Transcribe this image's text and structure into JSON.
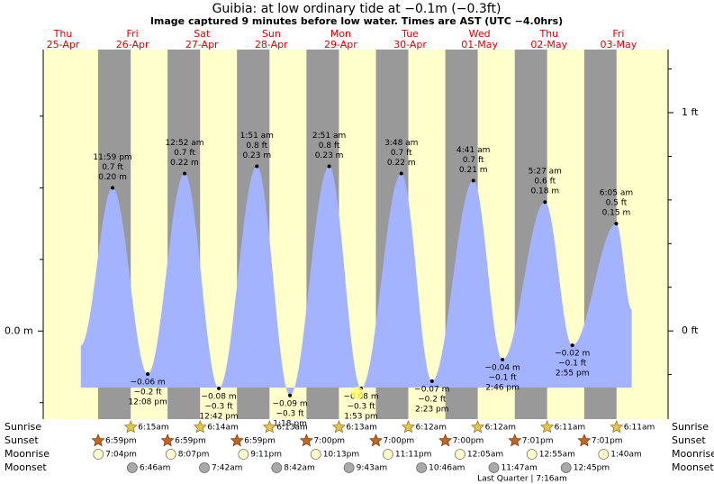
{
  "chart_data": {
    "type": "tide",
    "title": "Guibia: at low  ordinary tide at −0.1m (−0.3ft)",
    "subtitle": "Image captured 9 minutes before low water. Times are AST (UTC −4.0hrs)",
    "weekdays": [
      "Thu",
      "Fri",
      "Sat",
      "Sun",
      "Mon",
      "Tue",
      "Wed",
      "Thu",
      "Fri"
    ],
    "dates": [
      "25-Apr",
      "26-Apr",
      "27-Apr",
      "28-Apr",
      "29-Apr",
      "30-Apr",
      "01-May",
      "02-May",
      "03-May"
    ],
    "tide": {
      "color": "#a3b3ff",
      "x": [
        "25-Apr 13:00",
        "25-Apr 23:59",
        "26-Apr 12:08",
        "27-Apr 00:52",
        "27-Apr 12:42",
        "28-Apr 01:51",
        "28-Apr 13:18",
        "29-Apr 02:51",
        "29-Apr 13:53",
        "30-Apr 03:48",
        "30-Apr 14:23",
        "01-May 04:41",
        "01-May 14:46",
        "02-May 05:27",
        "02-May 14:55",
        "03-May 06:05",
        "03-May 11:25"
      ],
      "values": [
        -0.02,
        0.2,
        -0.06,
        0.22,
        -0.08,
        0.23,
        -0.09,
        0.23,
        -0.08,
        0.22,
        -0.07,
        0.21,
        -0.04,
        0.18,
        -0.02,
        0.15,
        0.03
      ],
      "value_labels": [
        null,
        "0.20 m",
        "−0.06 m",
        "0.22 m",
        "−0.08 m",
        "0.23 m",
        "−0.09 m",
        "0.23 m",
        "−0.08 m",
        "0.22 m",
        "−0.07 m",
        "0.21 m",
        "−0.04 m",
        "0.18 m",
        "−0.02 m",
        "0.15 m",
        null
      ],
      "ft_labels": [
        null,
        "0.7 ft",
        "−0.2 ft",
        "0.7 ft",
        "−0.3 ft",
        "0.8 ft",
        "−0.3 ft",
        "0.8 ft",
        "−0.3 ft",
        "0.7 ft",
        "−0.2 ft",
        "0.7 ft",
        "−0.1 ft",
        "0.6 ft",
        "−0.1 ft",
        "0.5 ft",
        null
      ],
      "time_labels": [
        null,
        "11:59 pm",
        "12:08 pm",
        "12:52 am",
        "12:42 pm",
        "1:51 am",
        "1:18 pm",
        "2:51 am",
        "1:53 pm",
        "3:48 am",
        "2:23 pm",
        "4:41 am",
        "2:46 pm",
        "5:27 am",
        "2:55 pm",
        "6:05 am",
        null
      ]
    },
    "ylim": [
      -0.123,
      0.393
    ],
    "yticks": [
      {
        "value": 0,
        "label": "0.0 m"
      }
    ],
    "yminorticks": [
      -0.1,
      0.1,
      0.2,
      0.3
    ],
    "y2lim": [
      -0.404,
      1.289
    ],
    "y2ticks": [
      {
        "value": 0,
        "label": "0 ft"
      },
      {
        "value": 1,
        "label": "1 ft"
      }
    ],
    "y2minorticks": [
      -0.2,
      0.2,
      0.4,
      0.6,
      0.8,
      1.2
    ],
    "astro": [
      {
        "name": "Sunrise",
        "icon": "sunrise",
        "times": [
          null,
          "6:15am",
          "6:14am",
          "6:13am",
          "6:13am",
          "6:12am",
          "6:12am",
          "6:11am",
          "6:11am"
        ]
      },
      {
        "name": "Sunset",
        "icon": "sunset",
        "times": [
          "6:59pm",
          "6:59pm",
          "6:59pm",
          "7:00pm",
          "7:00pm",
          "7:00pm",
          "7:01pm",
          "7:01pm",
          null
        ]
      },
      {
        "name": "Moonrise",
        "icon": "moonrise",
        "times": [
          "7:04pm",
          "8:07pm",
          "9:11pm",
          "10:13pm",
          "11:11pm",
          null,
          "12:05am",
          "12:55am",
          "1:40am"
        ]
      },
      {
        "name": "Moonset",
        "icon": "moonset",
        "times": [
          null,
          "6:46am",
          "7:42am",
          "8:42am",
          "9:43am",
          "10:46am",
          "11:47am",
          "12:45pm",
          null
        ]
      }
    ],
    "moon_phase": "Last Quarter | 7:16am"
  }
}
